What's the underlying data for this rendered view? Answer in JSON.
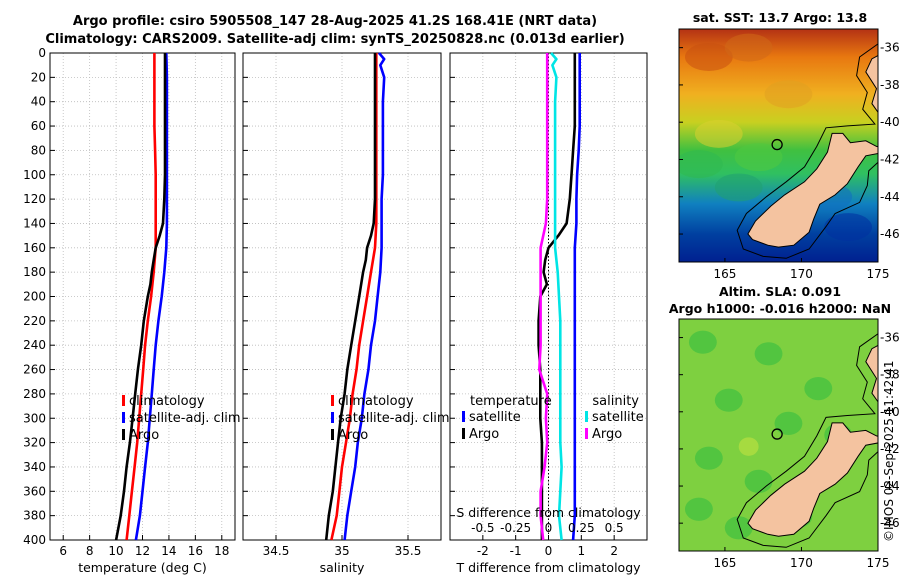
{
  "titles": {
    "line1": "Argo profile: csiro 5905508_147 28-Aug-2025 41.2S 168.41E (NRT data)",
    "line2": "Climatology: CARS2009. Satellite-adj clim: synTS_20250828.nc (0.013d earlier)",
    "sst_map": "sat. SST: 13.7 Argo: 13.8",
    "sla_map_1": "Altim. SLA: 0.091",
    "sla_map_2": "Argo h1000: -0.016 h2000: NaN",
    "stamp": "©IMOS 02-Sep-2025 11:42:41"
  },
  "colors": {
    "climatology": "#ff0000",
    "satellite": "#0000ff",
    "argo": "#000000",
    "sat_diff_s": "#00e5e5",
    "argo_diff_s": "#ff00ff"
  },
  "chart_data": [
    {
      "id": "temperature",
      "type": "line",
      "xlabel": "temperature (deg C)",
      "ylabel": "",
      "xlim": [
        5,
        19
      ],
      "ylim": [
        0,
        400
      ],
      "y_reversed": true,
      "grid": true,
      "xticks": [
        6,
        8,
        10,
        12,
        14,
        16,
        18
      ],
      "yticks": [
        0,
        20,
        40,
        60,
        80,
        100,
        120,
        140,
        160,
        180,
        200,
        220,
        240,
        260,
        280,
        300,
        320,
        340,
        360,
        380,
        400
      ],
      "legend": [
        "climatology",
        "satellite-adj. clim",
        "Argo"
      ],
      "legend_position": "lower-right",
      "series": [
        {
          "name": "climatology",
          "color": "#ff0000",
          "depth": [
            0,
            20,
            40,
            60,
            80,
            100,
            120,
            140,
            160,
            180,
            200,
            220,
            240,
            260,
            280,
            300,
            320,
            340,
            360,
            380,
            400
          ],
          "values": [
            12.9,
            12.9,
            12.9,
            12.9,
            12.95,
            13.0,
            13.0,
            13.0,
            13.0,
            12.85,
            12.65,
            12.4,
            12.2,
            12.05,
            11.9,
            11.75,
            11.6,
            11.4,
            11.2,
            11.0,
            10.8
          ]
        },
        {
          "name": "satellite-adj. clim",
          "color": "#0000ff",
          "depth": [
            0,
            20,
            40,
            60,
            80,
            100,
            120,
            140,
            160,
            180,
            200,
            220,
            240,
            260,
            280,
            300,
            320,
            340,
            360,
            380,
            400
          ],
          "values": [
            13.8,
            13.85,
            13.85,
            13.85,
            13.85,
            13.85,
            13.85,
            13.85,
            13.8,
            13.65,
            13.45,
            13.2,
            13.0,
            12.85,
            12.7,
            12.55,
            12.4,
            12.2,
            12.0,
            11.8,
            11.5
          ]
        },
        {
          "name": "Argo",
          "color": "#000000",
          "depth": [
            0,
            20,
            40,
            60,
            80,
            100,
            120,
            140,
            150,
            160,
            170,
            180,
            190,
            200,
            220,
            240,
            260,
            280,
            300,
            320,
            340,
            360,
            380,
            400
          ],
          "values": [
            13.7,
            13.7,
            13.7,
            13.7,
            13.7,
            13.7,
            13.65,
            13.55,
            13.3,
            13.0,
            12.85,
            12.7,
            12.6,
            12.4,
            12.1,
            11.9,
            11.65,
            11.45,
            11.25,
            11.05,
            10.8,
            10.6,
            10.35,
            10.0
          ]
        }
      ]
    },
    {
      "id": "salinity",
      "type": "line",
      "xlabel": "salinity",
      "ylabel": "",
      "xlim": [
        34.25,
        35.75
      ],
      "ylim": [
        0,
        400
      ],
      "y_reversed": true,
      "grid": true,
      "xticks": [
        34.5,
        35,
        35.5
      ],
      "yticks": [
        0,
        20,
        40,
        60,
        80,
        100,
        120,
        140,
        160,
        180,
        200,
        220,
        240,
        260,
        280,
        300,
        320,
        340,
        360,
        380,
        400
      ],
      "legend": [
        "climatology",
        "satellite-adj. clim",
        "Argo"
      ],
      "legend_position": "lower-right",
      "series": [
        {
          "name": "climatology",
          "color": "#ff0000",
          "depth": [
            0,
            20,
            40,
            60,
            80,
            100,
            120,
            140,
            160,
            180,
            200,
            220,
            240,
            260,
            280,
            300,
            320,
            340,
            360,
            380,
            400
          ],
          "values": [
            35.26,
            35.26,
            35.26,
            35.26,
            35.26,
            35.26,
            35.26,
            35.26,
            35.25,
            35.22,
            35.19,
            35.16,
            35.13,
            35.11,
            35.08,
            35.06,
            35.03,
            35.0,
            34.98,
            34.96,
            34.92
          ]
        },
        {
          "name": "satellite-adj. clim",
          "color": "#0000ff",
          "depth": [
            0,
            5,
            10,
            20,
            40,
            60,
            80,
            100,
            120,
            140,
            160,
            180,
            200,
            220,
            240,
            260,
            280,
            300,
            320,
            340,
            360,
            380,
            400
          ],
          "values": [
            35.28,
            35.32,
            35.29,
            35.32,
            35.31,
            35.31,
            35.31,
            35.31,
            35.3,
            35.3,
            35.3,
            35.29,
            35.27,
            35.25,
            35.22,
            35.2,
            35.17,
            35.15,
            35.12,
            35.1,
            35.07,
            35.04,
            35.02
          ]
        },
        {
          "name": "Argo",
          "color": "#000000",
          "depth": [
            0,
            20,
            40,
            60,
            80,
            100,
            120,
            140,
            150,
            160,
            170,
            180,
            200,
            220,
            240,
            260,
            280,
            300,
            320,
            340,
            360,
            380,
            400
          ],
          "values": [
            35.25,
            35.25,
            35.25,
            35.25,
            35.25,
            35.25,
            35.25,
            35.24,
            35.22,
            35.19,
            35.18,
            35.16,
            35.13,
            35.1,
            35.07,
            35.04,
            35.02,
            34.99,
            34.97,
            34.95,
            34.93,
            34.9,
            34.88
          ]
        }
      ]
    },
    {
      "id": "differences",
      "type": "line",
      "xlabel": "T difference from climatology",
      "x2label": "S difference from climatology",
      "xlim": [
        -3,
        3
      ],
      "x2lim": [
        -0.75,
        0.75
      ],
      "ylim": [
        0,
        400
      ],
      "y_reversed": true,
      "grid": true,
      "xticks": [
        -2,
        -1,
        0,
        1,
        2
      ],
      "xticklabels": [
        "-2",
        "-1",
        "0",
        "1",
        "2"
      ],
      "x2ticks": [
        -0.5,
        -0.25,
        0,
        0.25,
        0.5
      ],
      "x2ticklabels": [
        "-0.5",
        "-0.25",
        "0",
        "0.25",
        "0.5"
      ],
      "yticks": [
        0,
        20,
        40,
        60,
        80,
        100,
        120,
        140,
        160,
        180,
        200,
        220,
        240,
        260,
        280,
        300,
        320,
        340,
        360,
        380,
        400
      ],
      "legend_temperature": {
        "title": "temperature",
        "items": [
          "satellite",
          "Argo"
        ]
      },
      "legend_salinity": {
        "title": "salinity",
        "items": [
          "satellite",
          "Argo"
        ]
      },
      "series": [
        {
          "name": "temperature satellite",
          "axis": "T",
          "color": "#0000ff",
          "depth": [
            0,
            20,
            40,
            60,
            80,
            100,
            120,
            140,
            160,
            180,
            200,
            220,
            240,
            260,
            280,
            300,
            320,
            340,
            360,
            380,
            400
          ],
          "values": [
            0.95,
            0.95,
            0.95,
            0.95,
            0.92,
            0.87,
            0.85,
            0.85,
            0.8,
            0.8,
            0.8,
            0.8,
            0.8,
            0.8,
            0.8,
            0.8,
            0.8,
            0.8,
            0.8,
            0.8,
            0.75
          ]
        },
        {
          "name": "temperature Argo",
          "axis": "T",
          "color": "#000000",
          "depth": [
            0,
            20,
            40,
            60,
            80,
            100,
            120,
            140,
            150,
            160,
            170,
            180,
            190,
            200,
            220,
            240,
            260,
            280,
            300,
            320,
            340,
            360,
            380,
            400
          ],
          "values": [
            0.8,
            0.8,
            0.8,
            0.8,
            0.75,
            0.7,
            0.65,
            0.55,
            0.3,
            0.0,
            -0.1,
            -0.15,
            -0.05,
            -0.25,
            -0.3,
            -0.3,
            -0.25,
            -0.25,
            -0.25,
            -0.2,
            -0.2,
            -0.2,
            -0.2,
            -0.2
          ]
        },
        {
          "name": "salinity satellite",
          "axis": "S",
          "color": "#00e5e5",
          "depth": [
            0,
            5,
            10,
            20,
            40,
            60,
            80,
            100,
            120,
            140,
            160,
            180,
            200,
            220,
            240,
            260,
            280,
            300,
            320,
            340,
            360,
            380,
            400
          ],
          "values": [
            0.02,
            0.06,
            0.03,
            0.06,
            0.05,
            0.05,
            0.05,
            0.05,
            0.05,
            0.05,
            0.05,
            0.07,
            0.08,
            0.09,
            0.09,
            0.09,
            0.09,
            0.09,
            0.09,
            0.1,
            0.09,
            0.08,
            0.1
          ]
        },
        {
          "name": "salinity Argo",
          "axis": "S",
          "color": "#ff00ff",
          "depth": [
            0,
            20,
            40,
            60,
            80,
            100,
            120,
            140,
            160,
            180,
            200,
            220,
            240,
            260,
            280,
            300,
            320,
            340,
            360,
            380,
            400
          ],
          "values": [
            -0.01,
            -0.01,
            -0.01,
            -0.01,
            -0.01,
            -0.01,
            -0.01,
            -0.02,
            -0.06,
            -0.06,
            -0.06,
            -0.06,
            -0.06,
            -0.07,
            -0.01,
            -0.02,
            -0.01,
            -0.03,
            -0.06,
            -0.06,
            -0.04
          ]
        }
      ]
    },
    {
      "id": "sst_map",
      "type": "heatmap",
      "xlim": [
        162,
        175
      ],
      "ylim": [
        -47.5,
        -35
      ],
      "xticks": [
        165,
        170,
        175
      ],
      "yticks": [
        -36,
        -38,
        -40,
        -42,
        -44,
        -46
      ],
      "argo_position": {
        "lon": 168.41,
        "lat": -41.2
      }
    },
    {
      "id": "sla_map",
      "type": "heatmap",
      "xlim": [
        162,
        175
      ],
      "ylim": [
        -47.5,
        -35
      ],
      "xticks": [
        165,
        170,
        175
      ],
      "yticks": [
        -36,
        -38,
        -40,
        -42,
        -44,
        -46
      ],
      "argo_position": {
        "lon": 168.41,
        "lat": -41.2
      }
    }
  ]
}
